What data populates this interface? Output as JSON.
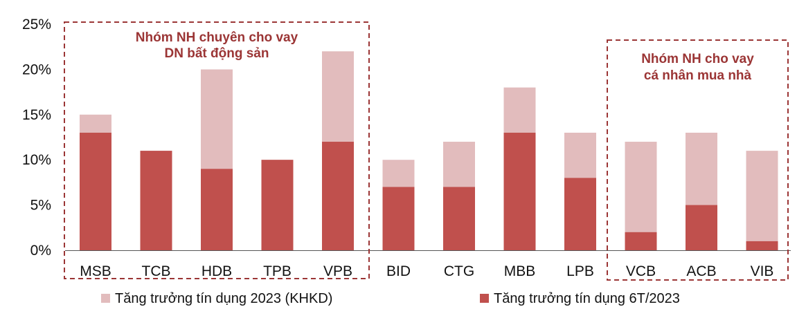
{
  "chart_data": {
    "type": "bar",
    "stacking": "overlay",
    "categories": [
      "MSB",
      "TCB",
      "HDB",
      "TPB",
      "VPB",
      "BID",
      "CTG",
      "MBB",
      "LPB",
      "VCB",
      "ACB",
      "VIB"
    ],
    "series": [
      {
        "name": "Tăng trưởng tín dụng 2023 (KHKD)",
        "values": [
          15,
          11,
          20,
          10,
          22,
          10,
          12,
          18,
          13,
          12,
          13,
          11
        ]
      },
      {
        "name": "Tăng trưởng tín dụng 6T/2023",
        "values": [
          13,
          11,
          9,
          10,
          12,
          7,
          7,
          13,
          8,
          2,
          5,
          1
        ]
      }
    ],
    "ylim": [
      0,
      25
    ],
    "yticks": [
      0,
      5,
      10,
      15,
      20,
      25
    ],
    "ytick_labels": [
      "0%",
      "5%",
      "10%",
      "15%",
      "20%",
      "25%"
    ],
    "grid": false,
    "legend_position": "bottom",
    "annotations": [
      {
        "text_lines": [
          "Nhóm NH chuyên cho vay",
          "DN bất động sản"
        ],
        "categories": [
          "MSB",
          "TCB",
          "HDB",
          "TPB",
          "VPB"
        ],
        "style": "dashed-box"
      },
      {
        "text_lines": [
          "Nhóm NH cho vay",
          "cá nhân mua nhà"
        ],
        "categories": [
          "VCB",
          "ACB",
          "VIB"
        ],
        "style": "dashed-box"
      }
    ],
    "colors": {
      "plan": "#e2bcbd",
      "h1": "#c0504d",
      "annotation": "#9b3535",
      "axis": "#555555"
    }
  }
}
